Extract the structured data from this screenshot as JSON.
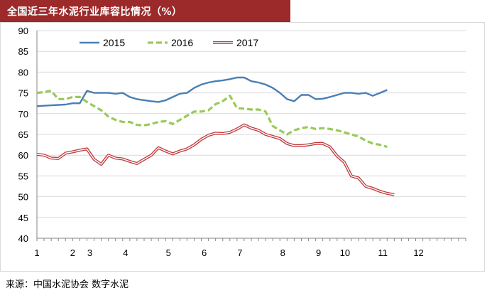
{
  "header": {
    "title": "全国近三年水泥行业库容比情况（%）"
  },
  "footer": {
    "source": "来源：中国水泥协会 数字水泥"
  },
  "colors": {
    "title_bar": "#9c2a2b",
    "s2015": "#4a7eb4",
    "s2016": "#9bc95a",
    "s2017": "#c0393b"
  },
  "chart_data": {
    "type": "line",
    "title": "全国近三年水泥行业库容比情况（%）",
    "xlabel": "",
    "ylabel": "",
    "ylim": [
      40,
      90
    ],
    "y_ticks": [
      "40",
      "45",
      "50",
      "55",
      "60",
      "65",
      "70",
      "75",
      "80",
      "85",
      "90"
    ],
    "x_tick_labels": [
      "1",
      "2",
      "3",
      "4",
      "5",
      "6",
      "7",
      "8",
      "9",
      "10",
      "11",
      "12"
    ],
    "x_label_weeks": [
      0,
      5,
      7.4,
      12.4,
      18.4,
      23.4,
      28.4,
      34.4,
      39.4,
      43.1,
      48.4,
      53.4
    ],
    "x_range": [
      0,
      60
    ],
    "grid": "horizontal",
    "legend_position": "top",
    "series": [
      {
        "name": "2015",
        "style": "solid",
        "points": [
          [
            0,
            71.8
          ],
          [
            2,
            72
          ],
          [
            4,
            72.2
          ],
          [
            5,
            72.5
          ],
          [
            6,
            72.5
          ],
          [
            7,
            75.5
          ],
          [
            8,
            75
          ],
          [
            9,
            75
          ],
          [
            10,
            75
          ],
          [
            11,
            74.8
          ],
          [
            12,
            75
          ],
          [
            13,
            74
          ],
          [
            14,
            73.5
          ],
          [
            16,
            73
          ],
          [
            17,
            72.8
          ],
          [
            18,
            73.2
          ],
          [
            19,
            74
          ],
          [
            20,
            74.8
          ],
          [
            21,
            75
          ],
          [
            22,
            76.2
          ],
          [
            23,
            77
          ],
          [
            24,
            77.5
          ],
          [
            25,
            77.8
          ],
          [
            26,
            78
          ],
          [
            27,
            78.3
          ],
          [
            28,
            78.7
          ],
          [
            29,
            78.7
          ],
          [
            30,
            77.8
          ],
          [
            31,
            77.5
          ],
          [
            32,
            77
          ],
          [
            33,
            76.2
          ],
          [
            34,
            75
          ],
          [
            35,
            73.5
          ],
          [
            36,
            73
          ],
          [
            37,
            74.5
          ],
          [
            38,
            74.5
          ],
          [
            39,
            73.5
          ],
          [
            40,
            73.6
          ],
          [
            41,
            74
          ],
          [
            42,
            74.5
          ],
          [
            43,
            75
          ],
          [
            44,
            75
          ],
          [
            45,
            74.8
          ],
          [
            46,
            75
          ],
          [
            47,
            74.3
          ],
          [
            48,
            75
          ],
          [
            49,
            75.7
          ]
        ]
      },
      {
        "name": "2016",
        "style": "dashed",
        "points": [
          [
            0,
            75
          ],
          [
            1,
            75.2
          ],
          [
            2,
            75.5
          ],
          [
            3,
            73.5
          ],
          [
            4,
            73.5
          ],
          [
            5,
            74
          ],
          [
            6,
            74
          ],
          [
            7,
            72.8
          ],
          [
            8,
            71.8
          ],
          [
            9,
            70.8
          ],
          [
            10,
            69.3
          ],
          [
            11,
            68.5
          ],
          [
            12,
            68
          ],
          [
            13,
            68
          ],
          [
            14,
            67.3
          ],
          [
            15,
            67.2
          ],
          [
            16,
            67.5
          ],
          [
            17,
            68
          ],
          [
            18,
            68.2
          ],
          [
            19,
            67.5
          ],
          [
            20,
            68.5
          ],
          [
            21,
            69.5
          ],
          [
            22,
            70.5
          ],
          [
            23,
            70.5
          ],
          [
            24,
            70.8
          ],
          [
            25,
            72.3
          ],
          [
            26,
            73
          ],
          [
            27,
            74.3
          ],
          [
            28,
            71.3
          ],
          [
            29,
            71.2
          ],
          [
            30,
            71
          ],
          [
            31,
            71
          ],
          [
            32,
            70.5
          ],
          [
            33,
            67
          ],
          [
            34,
            66
          ],
          [
            35,
            65
          ],
          [
            36,
            66
          ],
          [
            37,
            66.5
          ],
          [
            38,
            66.8
          ],
          [
            39,
            66.3
          ],
          [
            40,
            66.5
          ],
          [
            41,
            66.3
          ],
          [
            42,
            66
          ],
          [
            43,
            65.5
          ],
          [
            44,
            65
          ],
          [
            45,
            64.5
          ],
          [
            46,
            63.5
          ],
          [
            47,
            62.8
          ],
          [
            48,
            62.5
          ],
          [
            49,
            62
          ]
        ]
      },
      {
        "name": "2017",
        "style": "double",
        "points": [
          [
            0,
            60.2
          ],
          [
            1,
            60
          ],
          [
            2,
            59.3
          ],
          [
            3,
            59.2
          ],
          [
            4,
            60.5
          ],
          [
            5,
            60.8
          ],
          [
            6,
            61.2
          ],
          [
            7,
            61.5
          ],
          [
            8,
            59
          ],
          [
            9,
            57.8
          ],
          [
            10,
            60
          ],
          [
            11,
            59.3
          ],
          [
            12,
            59.1
          ],
          [
            13,
            58.5
          ],
          [
            14,
            58
          ],
          [
            15,
            59
          ],
          [
            16,
            60
          ],
          [
            17,
            61.8
          ],
          [
            18,
            61
          ],
          [
            19,
            60.3
          ],
          [
            20,
            61
          ],
          [
            21,
            61.5
          ],
          [
            22,
            62.5
          ],
          [
            23,
            63.8
          ],
          [
            24,
            64.8
          ],
          [
            25,
            65.3
          ],
          [
            26,
            65.2
          ],
          [
            27,
            65.5
          ],
          [
            28,
            66.3
          ],
          [
            29,
            67.3
          ],
          [
            30,
            66.5
          ],
          [
            31,
            66
          ],
          [
            32,
            65
          ],
          [
            33,
            64.5
          ],
          [
            34,
            64
          ],
          [
            35,
            62.8
          ],
          [
            36,
            62.3
          ],
          [
            37,
            62.3
          ],
          [
            38,
            62.5
          ],
          [
            39,
            62.8
          ],
          [
            40,
            62.8
          ],
          [
            41,
            62
          ],
          [
            42,
            59.8
          ],
          [
            43,
            58.3
          ],
          [
            44,
            55
          ],
          [
            45,
            54.5
          ],
          [
            46,
            52.5
          ],
          [
            47,
            52
          ],
          [
            48,
            51.3
          ],
          [
            49,
            50.8
          ],
          [
            50,
            50.5
          ]
        ]
      }
    ]
  }
}
